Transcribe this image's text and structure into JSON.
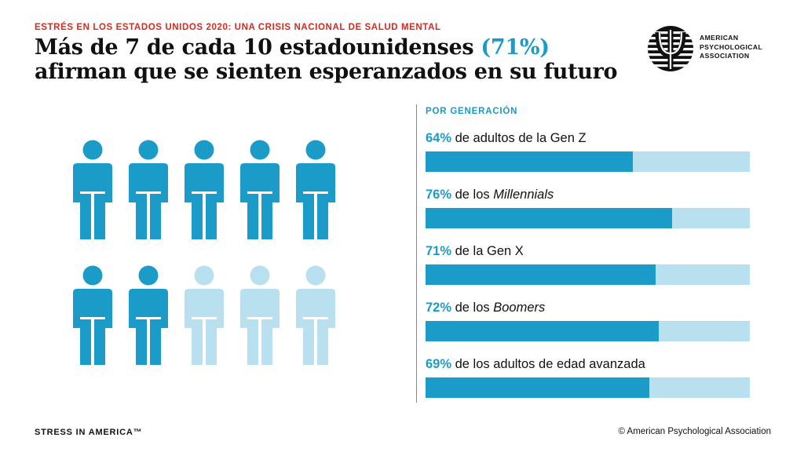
{
  "eyebrow": "ESTRÉS EN LOS ESTADOS UNIDOS 2020: UNA CRISIS NACIONAL DE SALUD MENTAL",
  "headline": {
    "part1": "Más de 7 de cada 10 estadounidenses ",
    "highlight": "(71%)",
    "part2": " afirman que se sienten esperanzados en su futuro"
  },
  "logo": {
    "line1": "AMERICAN",
    "line2": "PSYCHOLOGICAL",
    "line3": "ASSOCIATION",
    "icon": "psi-logo-icon"
  },
  "pictograph": {
    "total": 10,
    "filled": 7,
    "icon": "person-icon",
    "colors": {
      "filled": "#1a9bc8",
      "empty": "#b8e0ee"
    }
  },
  "colors": {
    "accent": "#1a9bc8",
    "track": "#b8e0ee",
    "eyebrow": "#d62b1e"
  },
  "chart_data": {
    "type": "bar",
    "title": "POR GENERACIÓN",
    "categories": [
      "Gen Z",
      "Millennials",
      "Gen X",
      "Boomers",
      "Adultos de edad avanzada"
    ],
    "values": [
      64,
      76,
      71,
      72,
      69
    ],
    "xlim": [
      0,
      100
    ],
    "unit": "%",
    "grid": false,
    "labels": [
      {
        "pct": "64%",
        "pre": " de adultos de la Gen Z",
        "em": "",
        "post": ""
      },
      {
        "pct": "76%",
        "pre": " de los ",
        "em": "Millennials",
        "post": ""
      },
      {
        "pct": "71%",
        "pre": " de la Gen X",
        "em": "",
        "post": ""
      },
      {
        "pct": "72%",
        "pre": " de los ",
        "em": "Boomers",
        "post": ""
      },
      {
        "pct": "69%",
        "pre": " de los adultos de edad avanzada",
        "em": "",
        "post": ""
      }
    ]
  },
  "footer": {
    "left": "STRESS IN AMERICA™",
    "right": "© American Psychological Association"
  }
}
